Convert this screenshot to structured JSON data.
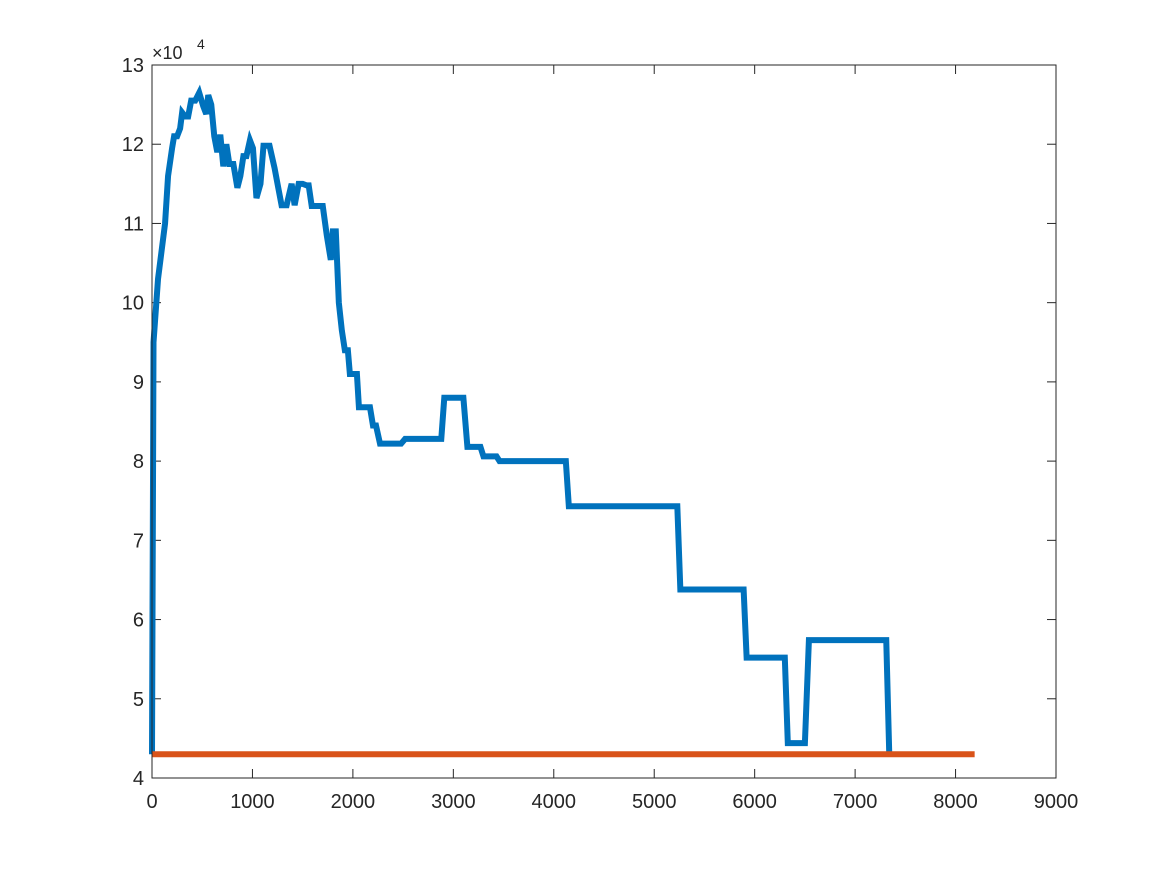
{
  "chart_data": {
    "type": "line",
    "title": "",
    "xlabel": "",
    "ylabel": "",
    "xlim": [
      0,
      9000
    ],
    "ylim": [
      40000,
      130000
    ],
    "x_ticks": [
      0,
      1000,
      2000,
      3000,
      4000,
      5000,
      6000,
      7000,
      8000,
      9000
    ],
    "y_ticks": [
      40000,
      50000,
      60000,
      70000,
      80000,
      90000,
      100000,
      110000,
      120000,
      130000
    ],
    "y_tick_labels": [
      "4",
      "5",
      "6",
      "7",
      "8",
      "9",
      "10",
      "11",
      "12",
      "13"
    ],
    "y_exponent_base": "×10",
    "y_exponent_power": "4",
    "grid": false,
    "legend": null,
    "axis_color": "#262626",
    "series": [
      {
        "color": "#0072BD",
        "points": [
          [
            0,
            43000
          ],
          [
            15,
            95000
          ],
          [
            60,
            103000
          ],
          [
            130,
            110000
          ],
          [
            160,
            116000
          ],
          [
            200,
            119500
          ],
          [
            220,
            121000
          ],
          [
            250,
            121000
          ],
          [
            280,
            122000
          ],
          [
            300,
            124000
          ],
          [
            330,
            123500
          ],
          [
            360,
            123500
          ],
          [
            390,
            125500
          ],
          [
            430,
            125500
          ],
          [
            470,
            126500
          ],
          [
            510,
            124800
          ],
          [
            540,
            123800
          ],
          [
            560,
            126200
          ],
          [
            590,
            125000
          ],
          [
            620,
            121000
          ],
          [
            650,
            119000
          ],
          [
            680,
            121200
          ],
          [
            710,
            117200
          ],
          [
            740,
            120000
          ],
          [
            770,
            117500
          ],
          [
            810,
            117500
          ],
          [
            850,
            114500
          ],
          [
            880,
            116000
          ],
          [
            910,
            118500
          ],
          [
            940,
            118500
          ],
          [
            975,
            120500
          ],
          [
            1005,
            119500
          ],
          [
            1040,
            113200
          ],
          [
            1080,
            115000
          ],
          [
            1110,
            119800
          ],
          [
            1170,
            119800
          ],
          [
            1220,
            117000
          ],
          [
            1260,
            114300
          ],
          [
            1290,
            112300
          ],
          [
            1340,
            112300
          ],
          [
            1390,
            115000
          ],
          [
            1420,
            112300
          ],
          [
            1460,
            115000
          ],
          [
            1500,
            115000
          ],
          [
            1540,
            114800
          ],
          [
            1560,
            114800
          ],
          [
            1590,
            112200
          ],
          [
            1700,
            112200
          ],
          [
            1740,
            108500
          ],
          [
            1780,
            105400
          ],
          [
            1800,
            109000
          ],
          [
            1830,
            109000
          ],
          [
            1860,
            100000
          ],
          [
            1890,
            96500
          ],
          [
            1920,
            94000
          ],
          [
            1950,
            94000
          ],
          [
            1970,
            91000
          ],
          [
            2040,
            91000
          ],
          [
            2060,
            86800
          ],
          [
            2170,
            86800
          ],
          [
            2200,
            84500
          ],
          [
            2230,
            84500
          ],
          [
            2270,
            82200
          ],
          [
            2480,
            82200
          ],
          [
            2520,
            82800
          ],
          [
            2880,
            82800
          ],
          [
            2910,
            88000
          ],
          [
            3100,
            88000
          ],
          [
            3140,
            81800
          ],
          [
            3270,
            81800
          ],
          [
            3300,
            80600
          ],
          [
            3430,
            80600
          ],
          [
            3460,
            80000
          ],
          [
            4120,
            80000
          ],
          [
            4150,
            74300
          ],
          [
            5230,
            74300
          ],
          [
            5260,
            63800
          ],
          [
            5890,
            63800
          ],
          [
            5920,
            55200
          ],
          [
            6300,
            55200
          ],
          [
            6330,
            44400
          ],
          [
            6500,
            44400
          ],
          [
            6540,
            57400
          ],
          [
            7310,
            57400
          ],
          [
            7340,
            43000
          ]
        ]
      },
      {
        "color": "#D95319",
        "points": [
          [
            0,
            43000
          ],
          [
            8190,
            43000
          ]
        ]
      }
    ]
  }
}
